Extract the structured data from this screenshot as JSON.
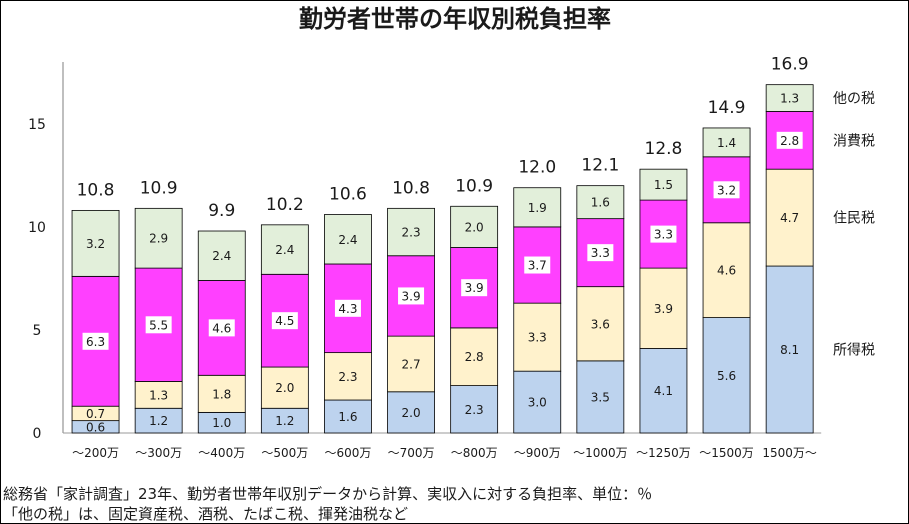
{
  "chart_data": {
    "type": "bar",
    "stacked": true,
    "title": "勤労者世帯の年収別税負担率",
    "categories": [
      "～200万",
      "～300万",
      "～400万",
      "～500万",
      "～600万",
      "～700万",
      "～800万",
      "～900万",
      "～1000万",
      "～1250万",
      "～1500万",
      "1500万～"
    ],
    "series": [
      {
        "name": "所得税",
        "color": "#BDD3EE",
        "values": [
          0.6,
          1.2,
          1.0,
          1.2,
          1.6,
          2.0,
          2.3,
          3.0,
          3.5,
          4.1,
          5.6,
          8.1
        ]
      },
      {
        "name": "住民税",
        "color": "#FFF2CC",
        "values": [
          0.7,
          1.3,
          1.8,
          2.0,
          2.3,
          2.7,
          2.8,
          3.3,
          3.6,
          3.9,
          4.6,
          4.7
        ]
      },
      {
        "name": "消費税",
        "color": "#FF40FF",
        "values": [
          6.3,
          5.5,
          4.6,
          4.5,
          4.3,
          3.9,
          3.9,
          3.7,
          3.3,
          3.3,
          3.2,
          2.8
        ]
      },
      {
        "name": "他の税",
        "color": "#E2EFDA",
        "values": [
          3.2,
          2.9,
          2.4,
          2.4,
          2.4,
          2.3,
          2.0,
          1.9,
          1.6,
          1.5,
          1.4,
          1.3
        ]
      }
    ],
    "totals": [
      10.8,
      10.9,
      9.9,
      10.2,
      10.6,
      10.8,
      10.9,
      12.0,
      12.1,
      12.8,
      14.9,
      16.9
    ],
    "ylim": [
      0,
      18
    ],
    "yticks": [
      0,
      5,
      10,
      15
    ],
    "grid": false,
    "legend_placement": "right"
  },
  "footer": {
    "source": "総務省「家計調査」23年、勤労者世帯年収別データから計算、実収入に対する負担率、単位：％",
    "note": "「他の税」は、固定資産税、酒税、たばこ税、揮発油税など"
  }
}
